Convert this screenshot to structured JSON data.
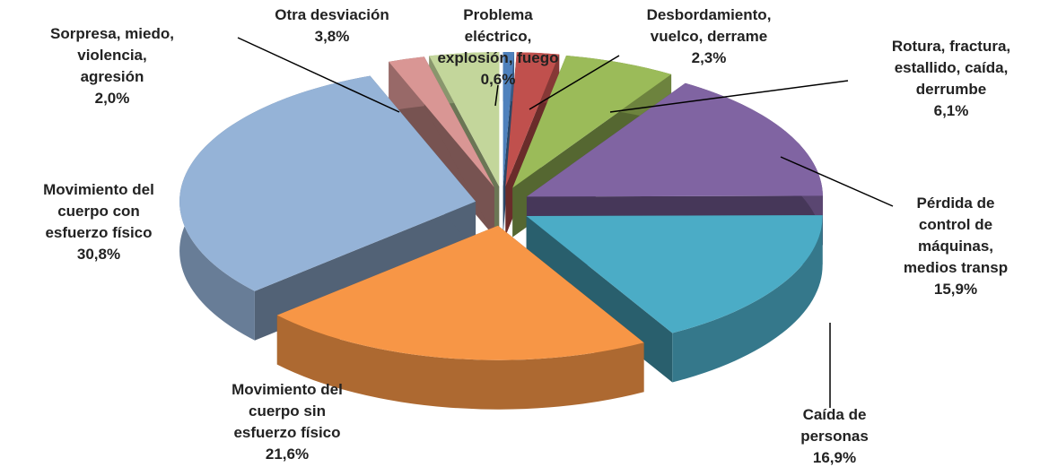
{
  "chart_data": {
    "type": "pie",
    "categories": [
      "Problema\neléctrico,\nexplosión, fuego",
      "Desbordamiento,\nvuelco, derrame",
      "Rotura, fractura,\nestallido, caída,\nderrumbe",
      "Pérdida de\ncontrol de\nmáquinas,\nmedios transp",
      "Caída de\npersonas",
      "Movimiento del\ncuerpo sin\nesfuerzo físico",
      "Movimiento del\ncuerpo con\nesfuerzo físico",
      "Sorpresa, miedo,\nviolencia,\nagresión",
      "Otra desviación"
    ],
    "values": [
      0.6,
      2.3,
      6.1,
      15.9,
      16.9,
      21.6,
      30.8,
      2.0,
      3.8
    ],
    "value_labels": [
      "0,6%",
      "2,3%",
      "6,1%",
      "15,9%",
      "16,9%",
      "21,6%",
      "30,8%",
      "2,0%",
      "3,8%"
    ],
    "colors": [
      "#4f81bd",
      "#c0504d",
      "#9bbb59",
      "#8064a2",
      "#4bacc6",
      "#f79646",
      "#95b3d7",
      "#d99694",
      "#c3d69b"
    ]
  }
}
